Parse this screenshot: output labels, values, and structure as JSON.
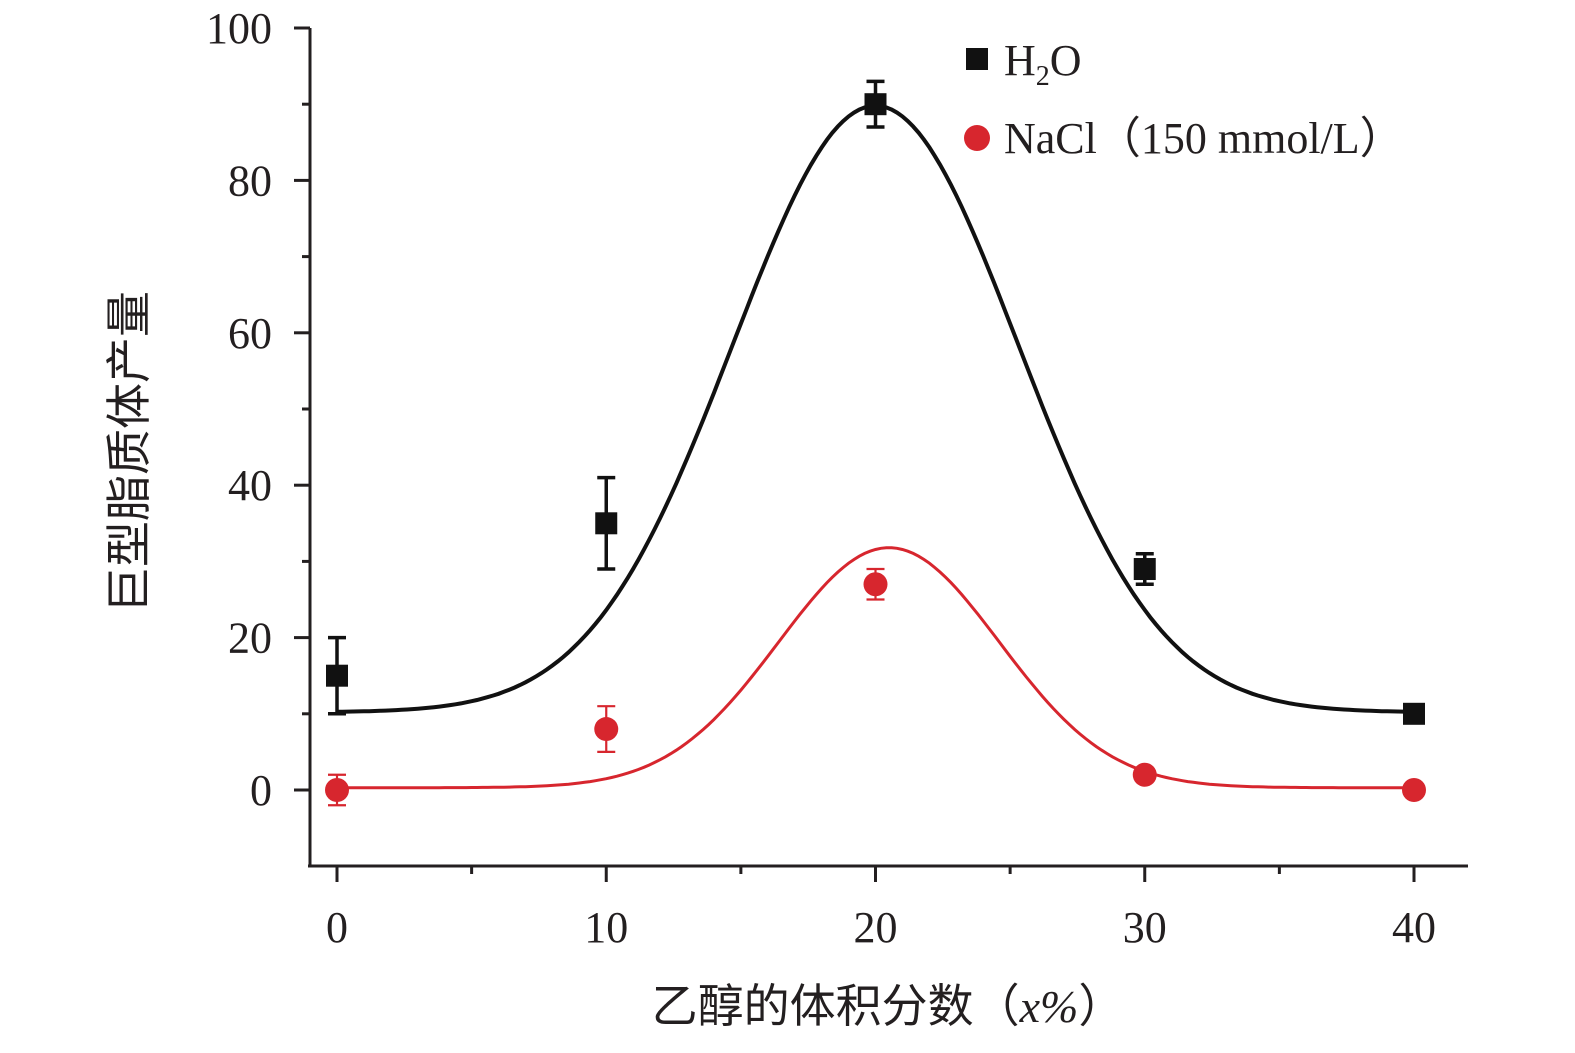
{
  "chart_data": {
    "type": "scatter",
    "title": "",
    "xlabel": "乙醇的体积分数（",
    "xlabel_var": "x%",
    "xlabel_close": "）",
    "ylabel": "巨型脂质体产量",
    "xlim": [
      -1.3,
      42
    ],
    "ylim": [
      -10,
      100
    ],
    "x_ticks": [
      0,
      10,
      20,
      30,
      40
    ],
    "x_tick_labels": [
      "0",
      "10",
      "20",
      "30",
      "40"
    ],
    "x_minor_ticks": [
      5,
      15,
      25,
      35
    ],
    "y_ticks": [
      0,
      20,
      40,
      60,
      80,
      100
    ],
    "y_tick_labels": [
      "0",
      "20",
      "40",
      "60",
      "80",
      "100"
    ],
    "y_minor_ticks": [
      10,
      30,
      50,
      70,
      90
    ],
    "grid": false,
    "legend_position": "top-right",
    "series": [
      {
        "name": "H2O",
        "legend_main": "H",
        "legend_sub": "2",
        "legend_tail": "O",
        "marker": "square",
        "color": "#111111",
        "x": [
          0,
          10,
          20,
          30,
          40
        ],
        "y": [
          15,
          35,
          90,
          29,
          10
        ],
        "error": [
          5,
          6,
          3,
          2,
          1
        ],
        "fit": {
          "baseline": 10.2,
          "amplitude": 79.6,
          "center": 20,
          "sigma": 5.3
        }
      },
      {
        "name": "NaCl（150 mmol/L）",
        "marker": "circle",
        "color": "#d7262e",
        "x": [
          0,
          10,
          20,
          30,
          40
        ],
        "y": [
          0,
          8,
          27,
          2,
          0
        ],
        "error": [
          2,
          3,
          2,
          0.5,
          0.5
        ],
        "fit": {
          "baseline": 0.3,
          "amplitude": 31.5,
          "center": 20.5,
          "sigma": 4.1
        }
      }
    ]
  }
}
